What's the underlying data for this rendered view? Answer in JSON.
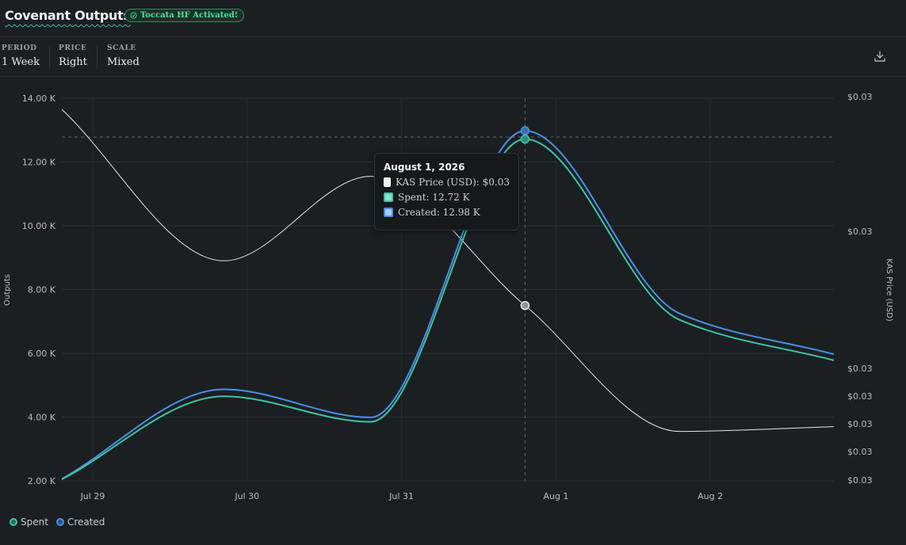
{
  "header": {
    "title": "Covenant Outputs",
    "badge": "Toccata HF Activated!",
    "badge_icon": "check-circle-icon"
  },
  "controls": [
    {
      "label": "PERIOD",
      "value": "1 Week"
    },
    {
      "label": "PRICE",
      "value": "Right"
    },
    {
      "label": "SCALE",
      "value": "Mixed"
    }
  ],
  "download_icon": "download-icon",
  "colors": {
    "spent": "#3fc4a6",
    "created": "#4a8fe6",
    "price": "#e6e8ea",
    "background": "#1b1f22"
  },
  "tooltip": {
    "date": "August 1, 2026",
    "rows": [
      {
        "text": "KAS Price (USD): $0.03"
      },
      {
        "text": "Spent: 12.72 K"
      },
      {
        "text": "Created: 12.98 K"
      }
    ]
  },
  "legend": [
    {
      "name": "Spent"
    },
    {
      "name": "Created"
    }
  ],
  "chart_data": {
    "type": "line",
    "xlabel": "",
    "ylabel": "Outputs",
    "y2label": "KAS Price (USD)",
    "x_ticks": [
      "Jul 29",
      "Jul 30",
      "Jul 31",
      "Aug 1",
      "Aug 2"
    ],
    "x_tick_days": [
      0,
      1,
      2,
      3,
      4
    ],
    "x_range": [
      -0.2,
      4.8
    ],
    "y_ticks": [
      "2.00 K",
      "4.00 K",
      "6.00 K",
      "8.00 K",
      "10.00 K",
      "12.00 K",
      "14.00 K"
    ],
    "y_tick_values": [
      2000,
      4000,
      6000,
      8000,
      10000,
      12000,
      14000
    ],
    "ylim": [
      2000,
      14000
    ],
    "y2_ticks": [
      "$0.03",
      "$0.03",
      "$0.03",
      "$0.03",
      "$0.03",
      "$0.03",
      "$0.03"
    ],
    "y2_scale": "log",
    "grid": true,
    "legend_position": "bottom-left",
    "hover_day": 2.8,
    "series": [
      {
        "name": "Spent",
        "axis": "left",
        "x": [
          -0.2,
          0.85,
          1.8,
          2.8,
          3.8,
          4.8
        ],
        "values": [
          2050,
          4650,
          3850,
          12720,
          7050,
          5780
        ]
      },
      {
        "name": "Created",
        "axis": "left",
        "x": [
          -0.2,
          0.85,
          1.8,
          2.8,
          3.8,
          4.8
        ],
        "values": [
          2060,
          4870,
          3990,
          12980,
          7250,
          5970
        ]
      },
      {
        "name": "KAS Price (USD)",
        "axis": "right",
        "x": [
          -0.2,
          0.85,
          1.8,
          2.8,
          3.8,
          4.8
        ],
        "values": [
          13650,
          8900,
          11550,
          7500,
          3550,
          3700
        ],
        "value_units": "left-axis equivalent"
      }
    ]
  }
}
